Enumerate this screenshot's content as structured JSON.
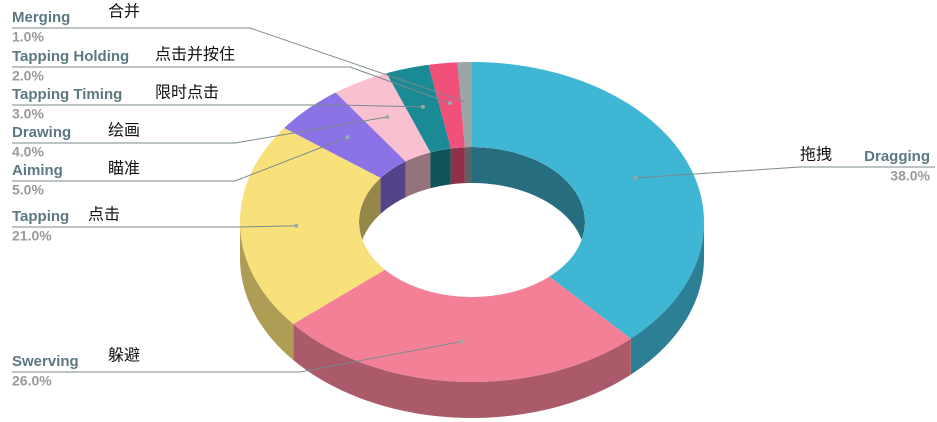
{
  "chart_data": {
    "type": "pie",
    "categories": [
      "Dragging",
      "Swerving",
      "Tapping",
      "Aiming",
      "Drawing",
      "Tapping Timing",
      "Tapping Holding",
      "Merging"
    ],
    "labels_zh": [
      "拖拽",
      "躲避",
      "点击",
      "瞄准",
      "绘画",
      "限时点击",
      "点击并按住",
      "合并"
    ],
    "values": [
      38,
      26,
      21,
      5,
      4,
      3,
      2,
      1
    ],
    "value_labels": [
      "38.0%",
      "26.0%",
      "21.0%",
      "5.0%",
      "4.0%",
      "3.0%",
      "2.0%",
      "1.0%"
    ],
    "colors": [
      "#3fb6d4",
      "#f48098",
      "#f8e07a",
      "#8b72e6",
      "#f9c0d0",
      "#1a8a94",
      "#f0507a",
      "#9aa5a8"
    ]
  }
}
